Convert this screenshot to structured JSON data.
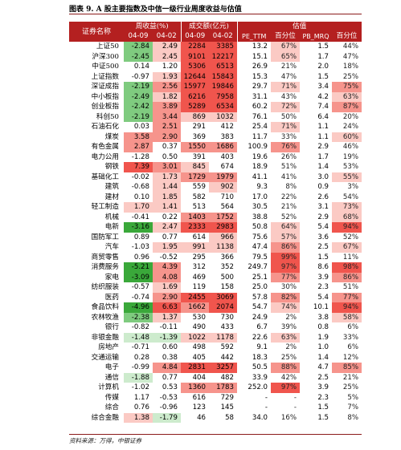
{
  "caption": "图表 9. A 股主要指数及中信一级行业周度收益与估值",
  "headers": {
    "name": "证券名称",
    "return_group": "周收益(%)",
    "volume_group": "成交额(亿元)",
    "valuation_group": "估值",
    "cols": [
      "04-09",
      "04-02",
      "04-09",
      "04-02",
      "PE_TTM",
      "百分位",
      "PB_MRQ",
      "百分位"
    ]
  },
  "colors": {
    "header_bg": "#b42020",
    "pos_strong": "#f0554d",
    "pos_mid": "#f6948c",
    "pos_light": "#fbcac4",
    "neg_strong": "#3aa83a",
    "neg_mid": "#7fcb7f",
    "neg_light": "#cdebcd"
  },
  "rows": [
    {
      "name": "上证50",
      "r1": "-2.84",
      "r2": "2.49",
      "v1": "2284",
      "v2": "3385",
      "pe": "13.2",
      "pep": "67%",
      "pb": "1.5",
      "pbp": "44%"
    },
    {
      "name": "沪深300",
      "r1": "-2.45",
      "r2": "2.45",
      "v1": "9101",
      "v2": "12217",
      "pe": "15.1",
      "pep": "65%",
      "pb": "1.7",
      "pbp": "47%"
    },
    {
      "name": "中证500",
      "r1": "0.14",
      "r2": "1.20",
      "v1": "5306",
      "v2": "6513",
      "pe": "26.9",
      "pep": "21%",
      "pb": "2.0",
      "pbp": "18%"
    },
    {
      "name": "上证指数",
      "r1": "-0.97",
      "r2": "1.93",
      "v1": "12644",
      "v2": "15843",
      "pe": "15.3",
      "pep": "47%",
      "pb": "1.5",
      "pbp": "25%"
    },
    {
      "name": "深证成指",
      "r1": "-2.19",
      "r2": "2.56",
      "v1": "15977",
      "v2": "19846",
      "pe": "29.7",
      "pep": "71%",
      "pb": "3.4",
      "pbp": "75%"
    },
    {
      "name": "中小板指",
      "r1": "-2.49",
      "r2": "1.82",
      "v1": "6216",
      "v2": "7958",
      "pe": "31.1",
      "pep": "43%",
      "pb": "4.2",
      "pbp": "63%"
    },
    {
      "name": "创业板指",
      "r1": "-2.42",
      "r2": "3.89",
      "v1": "5289",
      "v2": "6534",
      "pe": "60.2",
      "pep": "72%",
      "pb": "7.4",
      "pbp": "87%"
    },
    {
      "name": "科创50",
      "r1": "-2.19",
      "r2": "3.44",
      "v1": "869",
      "v2": "1032",
      "pe": "76.1",
      "pep": "50%",
      "pb": "6.4",
      "pbp": "20%"
    },
    {
      "name": "石油石化",
      "r1": "0.03",
      "r2": "2.51",
      "v1": "291",
      "v2": "412",
      "pe": "25.4",
      "pep": "71%",
      "pb": "1.1",
      "pbp": "24%"
    },
    {
      "name": "煤炭",
      "r1": "3.58",
      "r2": "2.90",
      "v1": "369",
      "v2": "383",
      "pe": "11.7",
      "pep": "33%",
      "pb": "1.1",
      "pbp": "60%"
    },
    {
      "name": "有色金属",
      "r1": "2.87",
      "r2": "0.37",
      "v1": "1550",
      "v2": "1686",
      "pe": "100.9",
      "pep": "76%",
      "pb": "2.9",
      "pbp": "46%"
    },
    {
      "name": "电力公用",
      "r1": "-1.28",
      "r2": "0.50",
      "v1": "391",
      "v2": "403",
      "pe": "19.6",
      "pep": "26%",
      "pb": "1.7",
      "pbp": "19%"
    },
    {
      "name": "钢铁",
      "r1": "7.39",
      "r2": "3.01",
      "v1": "845",
      "v2": "674",
      "pe": "18.9",
      "pep": "51%",
      "pb": "1.4",
      "pbp": "53%"
    },
    {
      "name": "基础化工",
      "r1": "-0.02",
      "r2": "1.73",
      "v1": "1729",
      "v2": "1979",
      "pe": "41.1",
      "pep": "41%",
      "pb": "3.0",
      "pbp": "55%"
    },
    {
      "name": "建筑",
      "r1": "-0.68",
      "r2": "1.44",
      "v1": "559",
      "v2": "902",
      "pe": "9.3",
      "pep": "8%",
      "pb": "0.9",
      "pbp": "3%"
    },
    {
      "name": "建材",
      "r1": "0.10",
      "r2": "1.85",
      "v1": "582",
      "v2": "710",
      "pe": "17.0",
      "pep": "22%",
      "pb": "2.6",
      "pbp": "54%"
    },
    {
      "name": "轻工制造",
      "r1": "1.70",
      "r2": "1.41",
      "v1": "513",
      "v2": "564",
      "pe": "30.5",
      "pep": "21%",
      "pb": "3.1",
      "pbp": "73%"
    },
    {
      "name": "机械",
      "r1": "-0.41",
      "r2": "0.22",
      "v1": "1403",
      "v2": "1752",
      "pe": "38.8",
      "pep": "52%",
      "pb": "2.9",
      "pbp": "68%"
    },
    {
      "name": "电新",
      "r1": "-3.16",
      "r2": "2.47",
      "v1": "2333",
      "v2": "2983",
      "pe": "50.8",
      "pep": "64%",
      "pb": "5.4",
      "pbp": "94%"
    },
    {
      "name": "国防军工",
      "r1": "0.89",
      "r2": "0.77",
      "v1": "614",
      "v2": "966",
      "pe": "75.6",
      "pep": "57%",
      "pb": "3.6",
      "pbp": "52%"
    },
    {
      "name": "汽车",
      "r1": "-1.03",
      "r2": "1.95",
      "v1": "991",
      "v2": "1138",
      "pe": "47.4",
      "pep": "86%",
      "pb": "2.5",
      "pbp": "67%"
    },
    {
      "name": "商贸零售",
      "r1": "0.96",
      "r2": "-0.52",
      "v1": "295",
      "v2": "366",
      "pe": "79.5",
      "pep": "99%",
      "pb": "1.5",
      "pbp": "11%"
    },
    {
      "name": "消费服务",
      "r1": "-5.21",
      "r2": "4.39",
      "v1": "312",
      "v2": "352",
      "pe": "249.7",
      "pep": "97%",
      "pb": "8.6",
      "pbp": "98%"
    },
    {
      "name": "家电",
      "r1": "-3.09",
      "r2": "4.08",
      "v1": "469",
      "v2": "500",
      "pe": "25.1",
      "pep": "77%",
      "pb": "3.9",
      "pbp": "86%"
    },
    {
      "name": "纺织服装",
      "r1": "-0.57",
      "r2": "1.69",
      "v1": "119",
      "v2": "158",
      "pe": "25.0",
      "pep": "30%",
      "pb": "2.3",
      "pbp": "51%"
    },
    {
      "name": "医药",
      "r1": "-0.74",
      "r2": "2.90",
      "v1": "2455",
      "v2": "3069",
      "pe": "57.8",
      "pep": "82%",
      "pb": "5.4",
      "pbp": "77%"
    },
    {
      "name": "食品饮料",
      "r1": "-4.96",
      "r2": "6.63",
      "v1": "1662",
      "v2": "2074",
      "pe": "54.7",
      "pep": "74%",
      "pb": "10.1",
      "pbp": "94%"
    },
    {
      "name": "农林牧渔",
      "r1": "-2.38",
      "r2": "1.37",
      "v1": "530",
      "v2": "730",
      "pe": "24.9",
      "pep": "2%",
      "pb": "3.8",
      "pbp": "58%"
    },
    {
      "name": "银行",
      "r1": "-0.82",
      "r2": "-0.11",
      "v1": "490",
      "v2": "433",
      "pe": "6.7",
      "pep": "39%",
      "pb": "0.8",
      "pbp": "6%"
    },
    {
      "name": "非银金融",
      "r1": "-1.48",
      "r2": "-1.39",
      "v1": "1022",
      "v2": "1178",
      "pe": "22.6",
      "pep": "63%",
      "pb": "1.9",
      "pbp": "33%"
    },
    {
      "name": "房地产",
      "r1": "-0.71",
      "r2": "0.60",
      "v1": "498",
      "v2": "592",
      "pe": "9.1",
      "pep": "2%",
      "pb": "1.0",
      "pbp": "6%"
    },
    {
      "name": "交通运输",
      "r1": "0.28",
      "r2": "0.38",
      "v1": "405",
      "v2": "442",
      "pe": "18.3",
      "pep": "25%",
      "pb": "1.4",
      "pbp": "12%"
    },
    {
      "name": "电子",
      "r1": "-0.99",
      "r2": "4.84",
      "v1": "2831",
      "v2": "3257",
      "pe": "50.5",
      "pep": "88%",
      "pb": "4.7",
      "pbp": "85%"
    },
    {
      "name": "通信",
      "r1": "-1.88",
      "r2": "0.77",
      "v1": "404",
      "v2": "482",
      "pe": "33.9",
      "pep": "42%",
      "pb": "2.5",
      "pbp": "21%"
    },
    {
      "name": "计算机",
      "r1": "-1.02",
      "r2": "0.53",
      "v1": "1360",
      "v2": "1783",
      "pe": "252.0",
      "pep": "97%",
      "pb": "3.9",
      "pbp": "25%"
    },
    {
      "name": "传媒",
      "r1": "1.17",
      "r2": "-0.53",
      "v1": "616",
      "v2": "729",
      "pe": "-",
      "pep": "-",
      "pb": "2.3",
      "pbp": "5%"
    },
    {
      "name": "综合",
      "r1": "0.76",
      "r2": "-0.96",
      "v1": "123",
      "v2": "145",
      "pe": "-",
      "pep": "-",
      "pb": "1.5",
      "pbp": "7%"
    },
    {
      "name": "综合金融",
      "r1": "1.38",
      "r2": "-1.79",
      "v1": "46",
      "v2": "58",
      "pe": "34.0",
      "pep": "16%",
      "pb": "1.5",
      "pbp": "8%"
    }
  ],
  "footer": "资料来源：万得，中银证券"
}
